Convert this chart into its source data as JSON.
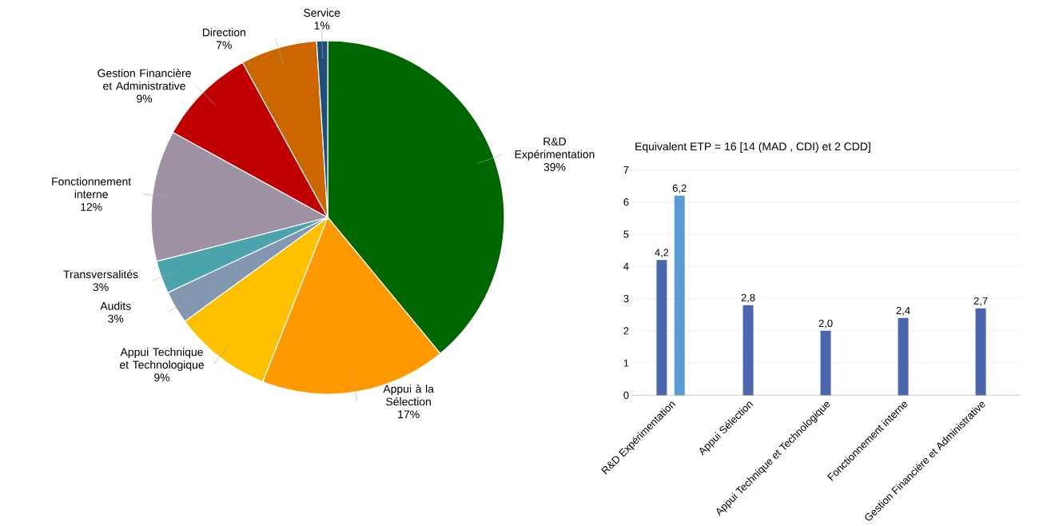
{
  "chart_data": [
    {
      "type": "pie",
      "categories": [
        "R&D Expérimentation",
        "Appui à la Sélection",
        "Appui Technique et Technologique",
        "Audits",
        "Transversalités",
        "Fonctionnement interne",
        "Gestion Financière et Administrative",
        "Direction",
        "Service"
      ],
      "values": [
        39,
        17,
        9,
        3,
        3,
        12,
        9,
        7,
        1
      ],
      "colors": [
        "#006600",
        "#ff9900",
        "#ffc000",
        "#8497b0",
        "#4ba3ad",
        "#9e91a3",
        "#c00000",
        "#cc6600",
        "#1f4e79"
      ],
      "value_labels": [
        "39%",
        "17%",
        "9%",
        "3%",
        "3%",
        "12%",
        "9%",
        "7%",
        "1%"
      ]
    },
    {
      "type": "bar",
      "title": "Equivalent ETP = 16 [14 (MAD , CDI) et 2 CDD]",
      "categories": [
        "R&D Expérimentation",
        "Appui Sélection",
        "Appui Technique et Technologique",
        "Fonctionnement interne",
        "Gestion Financière et Administrative"
      ],
      "series": [
        {
          "color": "#4a66ac",
          "values": [
            4.2,
            2.8,
            2.0,
            2.4,
            2.7
          ],
          "value_labels": [
            "4,2",
            "2,8",
            "2,0",
            "2,4",
            "2,7"
          ]
        },
        {
          "color": "#5b9bd5",
          "values": [
            6.2,
            null,
            null,
            null,
            null
          ],
          "value_labels": [
            "6,2",
            null,
            null,
            null,
            null
          ]
        }
      ],
      "ylim": [
        0,
        7
      ],
      "yticks": [
        0,
        1,
        2,
        3,
        4,
        5,
        6,
        7
      ],
      "grid": "y"
    }
  ]
}
